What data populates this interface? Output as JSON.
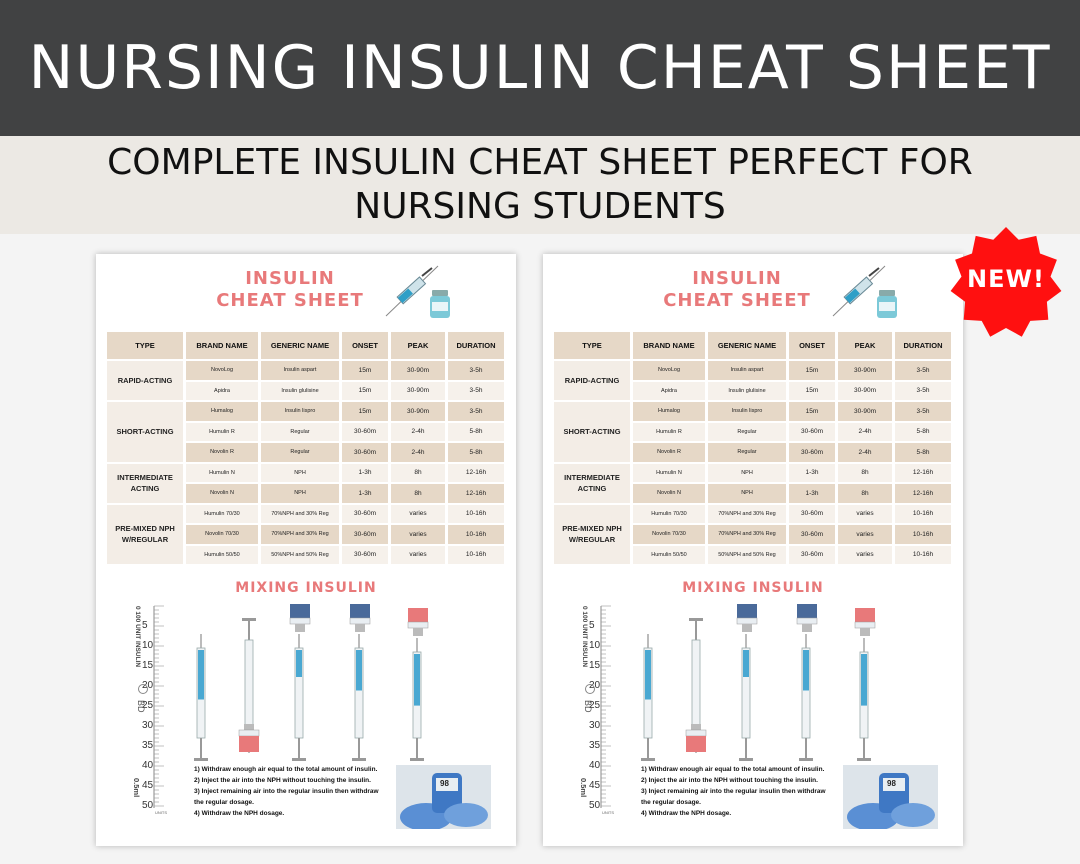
{
  "banner": {
    "title": "NURSING INSULIN CHEAT SHEET"
  },
  "subheading": {
    "text": "COMPLETE INSULIN CHEAT SHEET PERFECT FOR NURSING STUDENTS"
  },
  "badge": {
    "label": "NEW!",
    "color": "#ff1010"
  },
  "colors": {
    "accent": "#e8797a",
    "header_fill": "#e6d8c7",
    "light_fill": "#f6f1eb",
    "banner": "#414243"
  },
  "sheet": {
    "title_line1": "INSULIN",
    "title_line2": "CHEAT SHEET",
    "icon": "syringe-vial-icon",
    "columns": [
      "TYPE",
      "BRAND NAME",
      "GENERIC NAME",
      "ONSET",
      "PEAK",
      "DURATION"
    ],
    "groups": [
      {
        "type": "RAPID-ACTING",
        "rows": [
          {
            "brand": "NovoLog",
            "generic": "Insulin aspart",
            "onset": "15m",
            "peak": "30-90m",
            "duration": "3-5h"
          },
          {
            "brand": "Apidra",
            "generic": "Insulin glulisine",
            "onset": "15m",
            "peak": "30-90m",
            "duration": "3-5h"
          }
        ]
      },
      {
        "type": "SHORT-ACTING",
        "rows": [
          {
            "brand": "Humalog",
            "generic": "Insulin lispro",
            "onset": "15m",
            "peak": "30-90m",
            "duration": "3-5h"
          },
          {
            "brand": "Humulin R",
            "generic": "Regular",
            "onset": "30-60m",
            "peak": "2-4h",
            "duration": "5-8h"
          },
          {
            "brand": "Novolin R",
            "generic": "Regular",
            "onset": "30-60m",
            "peak": "2-4h",
            "duration": "5-8h"
          }
        ]
      },
      {
        "type": "INTERMEDIATE ACTING",
        "rows": [
          {
            "brand": "Humulin N",
            "generic": "NPH",
            "onset": "1-3h",
            "peak": "8h",
            "duration": "12-16h"
          },
          {
            "brand": "Novolin N",
            "generic": "NPH",
            "onset": "1-3h",
            "peak": "8h",
            "duration": "12-16h"
          }
        ]
      },
      {
        "type": "PRE-MIXED NPH W/REGULAR",
        "rows": [
          {
            "brand": "Humulin 70/30",
            "generic": "70%NPH and 30% Reg",
            "onset": "30-60m",
            "peak": "varies",
            "duration": "10-16h"
          },
          {
            "brand": "Novolin 70/30",
            "generic": "70%NPH and 30% Reg",
            "onset": "30-60m",
            "peak": "varies",
            "duration": "10-16h"
          },
          {
            "brand": "Humulin 50/50",
            "generic": "50%NPH and 50% Reg",
            "onset": "30-60m",
            "peak": "varies",
            "duration": "10-16h"
          }
        ]
      }
    ],
    "mixing_title": "MIXING INSULIN",
    "ruler": {
      "numbers": [
        "5",
        "10",
        "15",
        "20",
        "25",
        "30",
        "35",
        "40",
        "45",
        "50"
      ],
      "top_label": "0 100 UNIT INSULIN",
      "bottom_label": "0.5ml",
      "brand": "BD",
      "units_label": "UNITS"
    },
    "steps": [
      "1) Withdraw enough air equal to the total amount of insulin.",
      "2) Inject the air into the NPH without touching the insulin.",
      "3) Inject remaining air into the regular insulin then withdraw",
      "the regular dosage.",
      "4) Withdraw the NPH dosage."
    ],
    "photo": {
      "icon": "glucometer-photo-icon",
      "reading": "98"
    }
  }
}
